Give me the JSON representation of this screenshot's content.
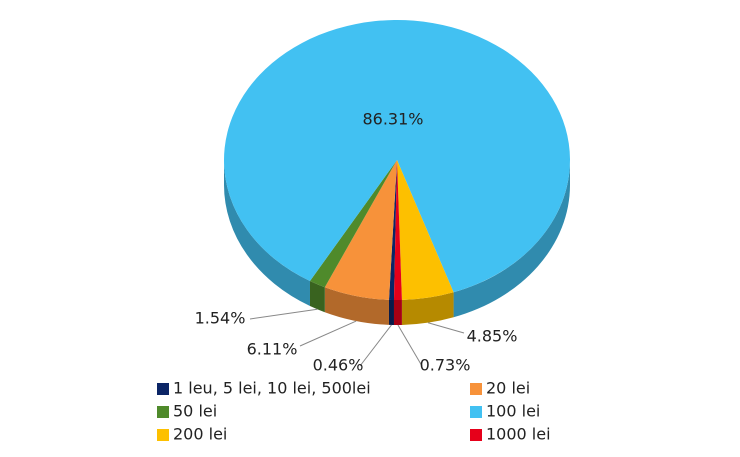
{
  "chart_data": {
    "type": "pie",
    "categories": [
      "1 leu, 5 lei, 10 lei, 500lei",
      "20 lei",
      "50 lei",
      "100 lei",
      "200 lei",
      "1000 lei"
    ],
    "values": [
      0.46,
      6.11,
      1.54,
      86.31,
      4.85,
      0.73
    ],
    "value_labels": [
      "0.46%",
      "6.11%",
      "1.54%",
      "86.31%",
      "4.85%",
      "0.73%"
    ],
    "colors": [
      "#0b2566",
      "#f7923a",
      "#4f8a2b",
      "#42c1f2",
      "#fdc000",
      "#e6001a"
    ],
    "legend": "bottom"
  }
}
